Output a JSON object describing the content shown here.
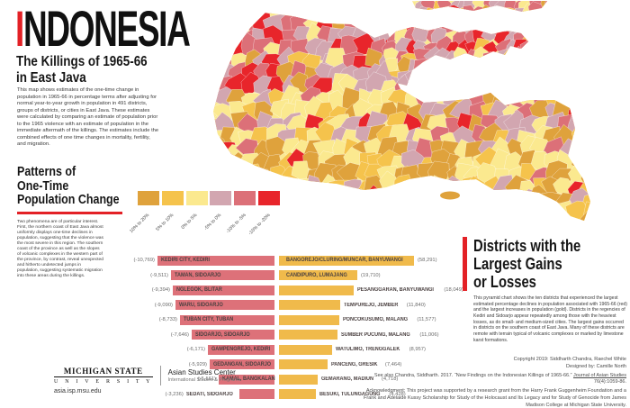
{
  "accent_color": "#e32126",
  "header": {
    "title_first_letter": "I",
    "title_rest": "NDONESIA",
    "subtitle_line1": "The Killings of 1965-66",
    "subtitle_line2": "in East Java",
    "intro": "This map shows estimates of the one-time change in population in 1965-66 in percentage terms after adjusting for normal year-to-year growth in population in 491 districts, groups of districts, or cities in East Java. These estimates were calculated by comparing an estimate of population prior to the 1965 violence with an estimate of population in the immediate aftermath of the killings. The estimates include the combined effects of one time changes in mortality, fertility, and migration."
  },
  "patterns_section": {
    "heading_line1": "Patterns of",
    "heading_line2": "One-Time",
    "heading_line3": "Population Change",
    "body": "Two phenomena are of particular interest. First, the northern coast of East Java almost uniformly displays one-time declines in population, suggesting that the violence was the most severe in this region. The southern coast of the province as well as the slopes of volcanic complexes in the western part of the province, by contrast, reveal unexpected and hitherto undetected jumps in population, suggesting systematic migration into these areas during the killings."
  },
  "legend": {
    "items": [
      {
        "label": "10% to 20%",
        "color": "#dfa23c"
      },
      {
        "label": "5% to 10%",
        "color": "#f5c34c"
      },
      {
        "label": "0% to 5%",
        "color": "#fbe98f"
      },
      {
        "label": "-5% to 0%",
        "color": "#d2a6b0"
      },
      {
        "label": "-10% to -5%",
        "color": "#dc7078"
      },
      {
        "label": "-10% to -20%",
        "color": "#e8252b"
      }
    ]
  },
  "chart_data": {
    "type": "bar",
    "subtype": "pyramid",
    "title": "Districts with the Largest Gains or Losses",
    "legend_position": "none",
    "series": [
      {
        "name": "Largest estimated declines in population (red)",
        "color": "#dd7179",
        "points": [
          {
            "district": "KEDIRI CITY, KEDIRI",
            "value": -10769,
            "label": "(-10,769)"
          },
          {
            "district": "TAMAN, SIDOARJO",
            "value": -9511,
            "label": "(-9,511)"
          },
          {
            "district": "NGLEGOK, BLITAR",
            "value": -9394,
            "label": "(-9,394)"
          },
          {
            "district": "WARU, SIDOARJO",
            "value": -9090,
            "label": "(-9,090)"
          },
          {
            "district": "TUBAN CITY, TUBAN",
            "value": -8733,
            "label": "(-8,733)"
          },
          {
            "district": "SIDOARJO, SIDOARJO",
            "value": -7646,
            "label": "(-7,646)"
          },
          {
            "district": "GAMPENGREJO, KEDIRI",
            "value": -6171,
            "label": "(-6,171)"
          },
          {
            "district": "GEDANGAN, SIDOARJO",
            "value": -5929,
            "label": "(-5,929)"
          },
          {
            "district": "KAMAL, BANGKALAN",
            "value": -5161,
            "label": "(-5,161)"
          },
          {
            "district": "SEDATI, SIDOARJO",
            "value": -3236,
            "label": "(-3,236)"
          }
        ]
      },
      {
        "name": "Largest estimated increases in population (gold)",
        "color": "#f0ba4b",
        "points": [
          {
            "district": "BANGOREJO/CLURING/MUNCAR, BANYUWANGI",
            "value": 58291,
            "label": "(58,291)"
          },
          {
            "district": "CANDIPURO, LUMAJANG",
            "value": 19710,
            "label": "(19,710)"
          },
          {
            "district": "PESANGGARAN, BANYUWANGI",
            "value": 18049,
            "label": "(18,049)"
          },
          {
            "district": "TEMPUREJO, JEMBER",
            "value": 11840,
            "label": "(11,840)"
          },
          {
            "district": "PONCOKUSUMO, MALANG",
            "value": 11577,
            "label": "(11,577)"
          },
          {
            "district": "SUMBER PUCUNG, MALANG",
            "value": 11006,
            "label": "(11,006)"
          },
          {
            "district": "WATULIMO, TRENGGALEK",
            "value": 8957,
            "label": "(8,957)"
          },
          {
            "district": "PANCENG, GRESIK",
            "value": 7464,
            "label": "(7,464)"
          },
          {
            "district": "GEMARANG, MADIUN",
            "value": 4718,
            "label": "(4,718)"
          },
          {
            "district": "BESUKI, TULUNGAGUNG",
            "value": 4428,
            "label": "(4,428)"
          }
        ]
      }
    ]
  },
  "districts_section": {
    "heading_line1": "Districts with the",
    "heading_line2": "Largest Gains",
    "heading_line3": "or Losses",
    "body": "This pyramid chart shows the ten districts that experienced the largest estimated percentage declines in population associated with 1965-66 (red) and the largest increases in population (gold). Districts in the regencies of Kediri and Sidoarjo appear repeatedly among those with the heaviest losses, as do small- and medium-sized cities. The largest gains occurred in districts on the southern coast of East Java. Many of these districts are remote with terrain typical of volcanic complexes or marked by limestone karst formations."
  },
  "credits": {
    "copyright": "Copyright 2019: Siddharth Chandra, Raechel White",
    "designed_by": "Designed by: Camille North",
    "see_also_prefix": "See also Chandra, Siddharth. 2017. “New Findings on the Indonesian Killings of 1965-66.” ",
    "see_also_journal": "Journal of Asian Studies",
    "see_also_suffix": " 76(4):1059-86.",
    "acknowledgment": "Acknowledgment: This project was supported by a research grant from the Harry Frank Guggenheim Foundation and a Frank and Adelaide Kussy Scholarship for Study of the Holocaust and Its Legacy and for Study of Genocide from James Madison College at Michigan State University."
  },
  "footer": {
    "msu_line1": "MICHIGAN STATE",
    "msu_line2": "U N I V E R S I T Y",
    "center_name": "Asian Studies Center",
    "programs": "International Studies & Programs",
    "url": "asia.isp.msu.edu"
  }
}
